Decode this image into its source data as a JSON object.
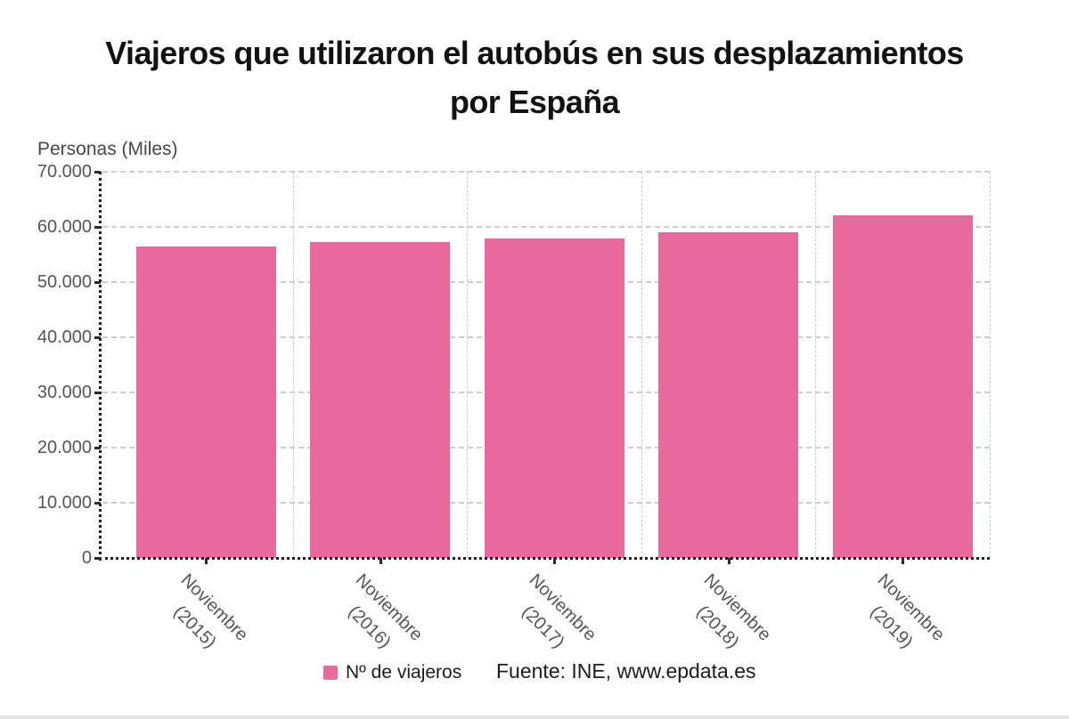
{
  "title": {
    "line1": "Viajeros que utilizaron el autobús en sus desplazamientos",
    "line2": "por España"
  },
  "y_axis": {
    "label": "Personas (Miles)",
    "ticks": [
      "70.000",
      "60.000",
      "50.000",
      "40.000",
      "30.000",
      "20.000",
      "10.000",
      "0"
    ]
  },
  "x_axis": {
    "labels": [
      {
        "line1": "Noviembre",
        "line2": "(2015)"
      },
      {
        "line1": "Noviembre",
        "line2": "(2016)"
      },
      {
        "line1": "Noviembre",
        "line2": "(2017)"
      },
      {
        "line1": "Noviembre",
        "line2": "(2018)"
      },
      {
        "line1": "Noviembre",
        "line2": "(2019)"
      }
    ]
  },
  "legend": {
    "label": "Nº de viajeros"
  },
  "source": "Fuente: INE, www.epdata.es",
  "colors": {
    "bar": "#e8699c",
    "grid": "#cecece",
    "axis": "#1f1f1f",
    "tick_label": "#565656",
    "title": "#121212",
    "footer_text": "#1c1c1c",
    "bottom_line": "#e4e4e4"
  },
  "chart_data": {
    "type": "bar",
    "title": "Viajeros que utilizaron el autobús en sus desplazamientos por España",
    "categories": [
      "Noviembre (2015)",
      "Noviembre (2016)",
      "Noviembre (2017)",
      "Noviembre (2018)",
      "Noviembre (2019)"
    ],
    "series": [
      {
        "name": "Nº de viajeros",
        "color": "#e8699c",
        "values": [
          56400,
          57300,
          57900,
          59100,
          62100
        ]
      }
    ],
    "xlabel": "",
    "ylabel": "Personas (Miles)",
    "ylim": [
      0,
      70000
    ],
    "y_tick_interval": 10000,
    "grid": true,
    "legend_position": "bottom"
  }
}
